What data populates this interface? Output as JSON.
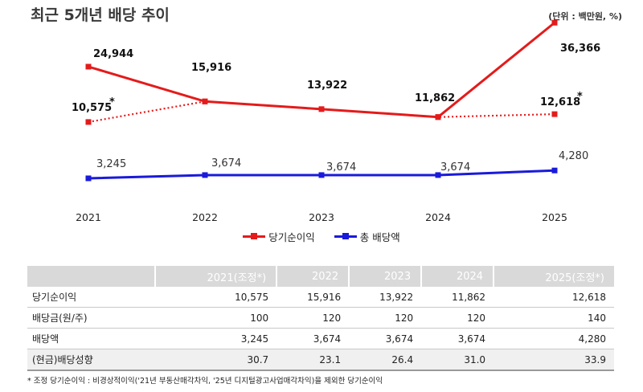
{
  "header": {
    "title": "최근 5개년 배당 추이",
    "unit": "(단위 : 백만원, %)"
  },
  "colors": {
    "net_income": "#e41b1b",
    "dividend": "#1a1adb",
    "header_bg": "#d9d9d9",
    "highlight_bg": "#f0f0f0"
  },
  "chart_data": {
    "type": "line",
    "categories": [
      "2021",
      "2022",
      "2023",
      "2024",
      "2025"
    ],
    "series": [
      {
        "name": "당기순이익",
        "values": [
          24944,
          15916,
          13922,
          11862,
          36366
        ],
        "labels": [
          "24,944",
          "15,916",
          "13,922",
          "11,862",
          "36,366"
        ],
        "style": "solid"
      },
      {
        "name": "당기순이익 (조정)",
        "x": [
          "2021",
          "2022",
          "2024",
          "2025"
        ],
        "values": [
          10575,
          15916,
          11862,
          12618
        ],
        "labels": [
          "10,575",
          "",
          "",
          "12,618"
        ],
        "asterisk": [
          true,
          false,
          false,
          true
        ],
        "style": "dotted"
      },
      {
        "name": "총 배당액",
        "values": [
          3245,
          3674,
          3674,
          3674,
          4280
        ],
        "labels": [
          "3,245",
          "3,674",
          "3,674",
          "3,674",
          "4,280"
        ],
        "style": "solid"
      }
    ],
    "asterisk_mark": "*",
    "legend": [
      "당기순이익",
      "총 배당액"
    ],
    "legend_position": "bottom-center",
    "grid": false
  },
  "table": {
    "headers": [
      "",
      "2021(조정*)",
      "2022",
      "2023",
      "2024",
      "2025(조정*)"
    ],
    "rows": [
      {
        "label": "당기순이익",
        "cells": [
          "10,575",
          "15,916",
          "13,922",
          "11,862",
          "12,618"
        ]
      },
      {
        "label": "배당금(원/주)",
        "cells": [
          "100",
          "120",
          "120",
          "120",
          "140"
        ]
      },
      {
        "label": "배당액",
        "cells": [
          "3,245",
          "3,674",
          "3,674",
          "3,674",
          "4,280"
        ]
      },
      {
        "label": "(현금)배당성향",
        "cells": [
          "30.7",
          "23.1",
          "26.4",
          "31.0",
          "33.9"
        ]
      }
    ]
  },
  "footnote": "* 조정 당기순이익 : 비경상적이익('21년 부동산매각차익, '25년 디지털광고사업매각차익)을 제외한 당기순이익"
}
